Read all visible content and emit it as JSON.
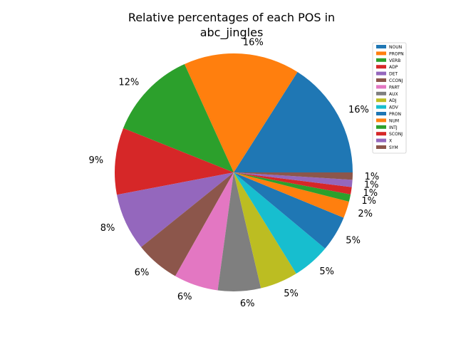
{
  "chart_data": {
    "type": "pie",
    "title_line1": "Relative percentages of each POS in",
    "title_line2": "abc_jingles",
    "start_angle_deg": 0,
    "direction": "counterclockwise",
    "legend_position": "upper-right",
    "slices": [
      {
        "label": "NOUN",
        "value": 16.2,
        "pct_label": "16%",
        "color": "#1f77b4"
      },
      {
        "label": "PROPN",
        "value": 16.0,
        "pct_label": "16%",
        "color": "#ff7f0e"
      },
      {
        "label": "VERB",
        "value": 12.3,
        "pct_label": "12%",
        "color": "#2ca02c"
      },
      {
        "label": "ADP",
        "value": 9.2,
        "pct_label": "9%",
        "color": "#d62728"
      },
      {
        "label": "DET",
        "value": 7.9,
        "pct_label": "8%",
        "color": "#9467bd"
      },
      {
        "label": "CCONJ",
        "value": 6.1,
        "pct_label": "6%",
        "color": "#8c564b"
      },
      {
        "label": "PART",
        "value": 6.1,
        "pct_label": "6%",
        "color": "#e377c2"
      },
      {
        "label": "AUX",
        "value": 5.9,
        "pct_label": "6%",
        "color": "#7f7f7f"
      },
      {
        "label": "ADJ",
        "value": 5.2,
        "pct_label": "5%",
        "color": "#bcbd22"
      },
      {
        "label": "ADV",
        "value": 5.2,
        "pct_label": "5%",
        "color": "#17becf"
      },
      {
        "label": "PRON",
        "value": 4.9,
        "pct_label": "5%",
        "color": "#1f77b4"
      },
      {
        "label": "NUM",
        "value": 2.3,
        "pct_label": "2%",
        "color": "#ff7f0e"
      },
      {
        "label": "INTJ",
        "value": 1.0,
        "pct_label": "1%",
        "color": "#2ca02c"
      },
      {
        "label": "SCONJ",
        "value": 1.0,
        "pct_label": "1%",
        "color": "#d62728"
      },
      {
        "label": "X",
        "value": 1.0,
        "pct_label": "1%",
        "color": "#9467bd"
      },
      {
        "label": "SYM",
        "value": 1.0,
        "pct_label": "1%",
        "color": "#8c564b"
      }
    ]
  }
}
